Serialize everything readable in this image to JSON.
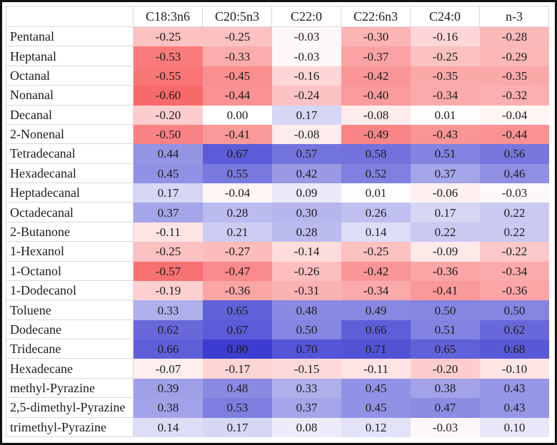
{
  "table": {
    "corner_label": "",
    "columns": [
      "C18:3n6",
      "C20:5n3",
      "C22:0",
      "C22:6n3",
      "C24:0",
      "n-3"
    ],
    "rows": [
      {
        "label": "Pentanal",
        "values": [
          "-0.25",
          "-0.25",
          "-0.03",
          "-0.30",
          "-0.16",
          "-0.28"
        ]
      },
      {
        "label": "Heptanal",
        "values": [
          "-0.53",
          "-0.33",
          "-0.03",
          "-0.37",
          "-0.25",
          "-0.29"
        ]
      },
      {
        "label": "Octanal",
        "values": [
          "-0.55",
          "-0.45",
          "-0.16",
          "-0.42",
          "-0.35",
          "-0.35"
        ]
      },
      {
        "label": "Nonanal",
        "values": [
          "-0.60",
          "-0.44",
          "-0.24",
          "-0.40",
          "-0.34",
          "-0.32"
        ]
      },
      {
        "label": "Decanal",
        "values": [
          "-0.20",
          "0.00",
          "0.17",
          "-0.08",
          "0.01",
          "-0.04"
        ]
      },
      {
        "label": "2-Nonenal",
        "values": [
          "-0.50",
          "-0.41",
          "-0.08",
          "-0.49",
          "-0.43",
          "-0.44"
        ]
      },
      {
        "label": "Tetradecanal",
        "values": [
          "0.44",
          "0.67",
          "0.57",
          "0.58",
          "0.51",
          "0.56"
        ]
      },
      {
        "label": "Hexadecanal",
        "values": [
          "0.45",
          "0.55",
          "0.42",
          "0.52",
          "0.37",
          "0.46"
        ]
      },
      {
        "label": "Heptadecanal",
        "values": [
          "0.17",
          "-0.04",
          "0.09",
          "0.01",
          "-0.06",
          "-0.03"
        ]
      },
      {
        "label": "Octadecanal",
        "values": [
          "0.37",
          "0.28",
          "0.30",
          "0.26",
          "0.17",
          "0.22"
        ]
      },
      {
        "label": "2-Butanone",
        "values": [
          "-0.11",
          "0.21",
          "0.28",
          "0.14",
          "0.22",
          "0.22"
        ]
      },
      {
        "label": "1-Hexanol",
        "values": [
          "-0.25",
          "-0.27",
          "-0.14",
          "-0.25",
          "-0.09",
          "-0.22"
        ]
      },
      {
        "label": "1-Octanol",
        "values": [
          "-0.57",
          "-0.47",
          "-0.26",
          "-0.42",
          "-0.36",
          "-0.34"
        ]
      },
      {
        "label": "1-Dodecanol",
        "values": [
          "-0.19",
          "-0.36",
          "-0.31",
          "-0.34",
          "-0.41",
          "-0.36"
        ]
      },
      {
        "label": "Toluene",
        "values": [
          "0.33",
          "0.65",
          "0.48",
          "0.49",
          "0.50",
          "0.50"
        ]
      },
      {
        "label": "Dodecane",
        "values": [
          "0.62",
          "0.67",
          "0.50",
          "0.66",
          "0.51",
          "0.62"
        ]
      },
      {
        "label": "Tridecane",
        "values": [
          "0.66",
          "0.80",
          "0.70",
          "0.71",
          "0.65",
          "0.68"
        ]
      },
      {
        "label": "Hexadecane",
        "values": [
          "-0.07",
          "-0.17",
          "-0.15",
          "-0.11",
          "-0.20",
          "-0.10"
        ]
      },
      {
        "label": "methyl-Pyrazine",
        "values": [
          "0.39",
          "0.48",
          "0.33",
          "0.45",
          "0.38",
          "0.43"
        ]
      },
      {
        "label": "2,5-dimethyl-Pyrazine",
        "values": [
          "0.38",
          "0.53",
          "0.37",
          "0.45",
          "0.47",
          "0.43"
        ]
      },
      {
        "label": "trimethyl-Pyrazine",
        "values": [
          "0.14",
          "0.17",
          "0.08",
          "0.12",
          "-0.03",
          "0.10"
        ]
      }
    ]
  },
  "color_scale": {
    "negative_end": "#F8696B",
    "positive_end": "#3C3CD0",
    "neutral": "#FFFFFF",
    "domain_min": -0.6,
    "domain_max": 0.8
  },
  "chart_data": {
    "type": "heatmap",
    "title": "",
    "x_categories": [
      "C18:3n6",
      "C20:5n3",
      "C22:0",
      "C22:6n3",
      "C24:0",
      "n-3"
    ],
    "y_categories": [
      "Pentanal",
      "Heptanal",
      "Octanal",
      "Nonanal",
      "Decanal",
      "2-Nonenal",
      "Tetradecanal",
      "Hexadecanal",
      "Heptadecanal",
      "Octadecanal",
      "2-Butanone",
      "1-Hexanol",
      "1-Octanol",
      "1-Dodecanol",
      "Toluene",
      "Dodecane",
      "Tridecane",
      "Hexadecane",
      "methyl-Pyrazine",
      "2,5-dimethyl-Pyrazine",
      "trimethyl-Pyrazine"
    ],
    "values": [
      [
        -0.25,
        -0.25,
        -0.03,
        -0.3,
        -0.16,
        -0.28
      ],
      [
        -0.53,
        -0.33,
        -0.03,
        -0.37,
        -0.25,
        -0.29
      ],
      [
        -0.55,
        -0.45,
        -0.16,
        -0.42,
        -0.35,
        -0.35
      ],
      [
        -0.6,
        -0.44,
        -0.24,
        -0.4,
        -0.34,
        -0.32
      ],
      [
        -0.2,
        0.0,
        0.17,
        -0.08,
        0.01,
        -0.04
      ],
      [
        -0.5,
        -0.41,
        -0.08,
        -0.49,
        -0.43,
        -0.44
      ],
      [
        0.44,
        0.67,
        0.57,
        0.58,
        0.51,
        0.56
      ],
      [
        0.45,
        0.55,
        0.42,
        0.52,
        0.37,
        0.46
      ],
      [
        0.17,
        -0.04,
        0.09,
        0.01,
        -0.06,
        -0.03
      ],
      [
        0.37,
        0.28,
        0.3,
        0.26,
        0.17,
        0.22
      ],
      [
        -0.11,
        0.21,
        0.28,
        0.14,
        0.22,
        0.22
      ],
      [
        -0.25,
        -0.27,
        -0.14,
        -0.25,
        -0.09,
        -0.22
      ],
      [
        -0.57,
        -0.47,
        -0.26,
        -0.42,
        -0.36,
        -0.34
      ],
      [
        -0.19,
        -0.36,
        -0.31,
        -0.34,
        -0.41,
        -0.36
      ],
      [
        0.33,
        0.65,
        0.48,
        0.49,
        0.5,
        0.5
      ],
      [
        0.62,
        0.67,
        0.5,
        0.66,
        0.51,
        0.62
      ],
      [
        0.66,
        0.8,
        0.7,
        0.71,
        0.65,
        0.68
      ],
      [
        -0.07,
        -0.17,
        -0.15,
        -0.11,
        -0.2,
        -0.1
      ],
      [
        0.39,
        0.48,
        0.33,
        0.45,
        0.38,
        0.43
      ],
      [
        0.38,
        0.53,
        0.37,
        0.45,
        0.47,
        0.43
      ],
      [
        0.14,
        0.17,
        0.08,
        0.12,
        -0.03,
        0.1
      ]
    ],
    "color_range": {
      "min": -0.6,
      "max": 0.8,
      "negative_color": "#F8696B",
      "zero_color": "#FFFFFF",
      "positive_color": "#3C3CD0"
    },
    "legend": "none",
    "grid": false
  }
}
